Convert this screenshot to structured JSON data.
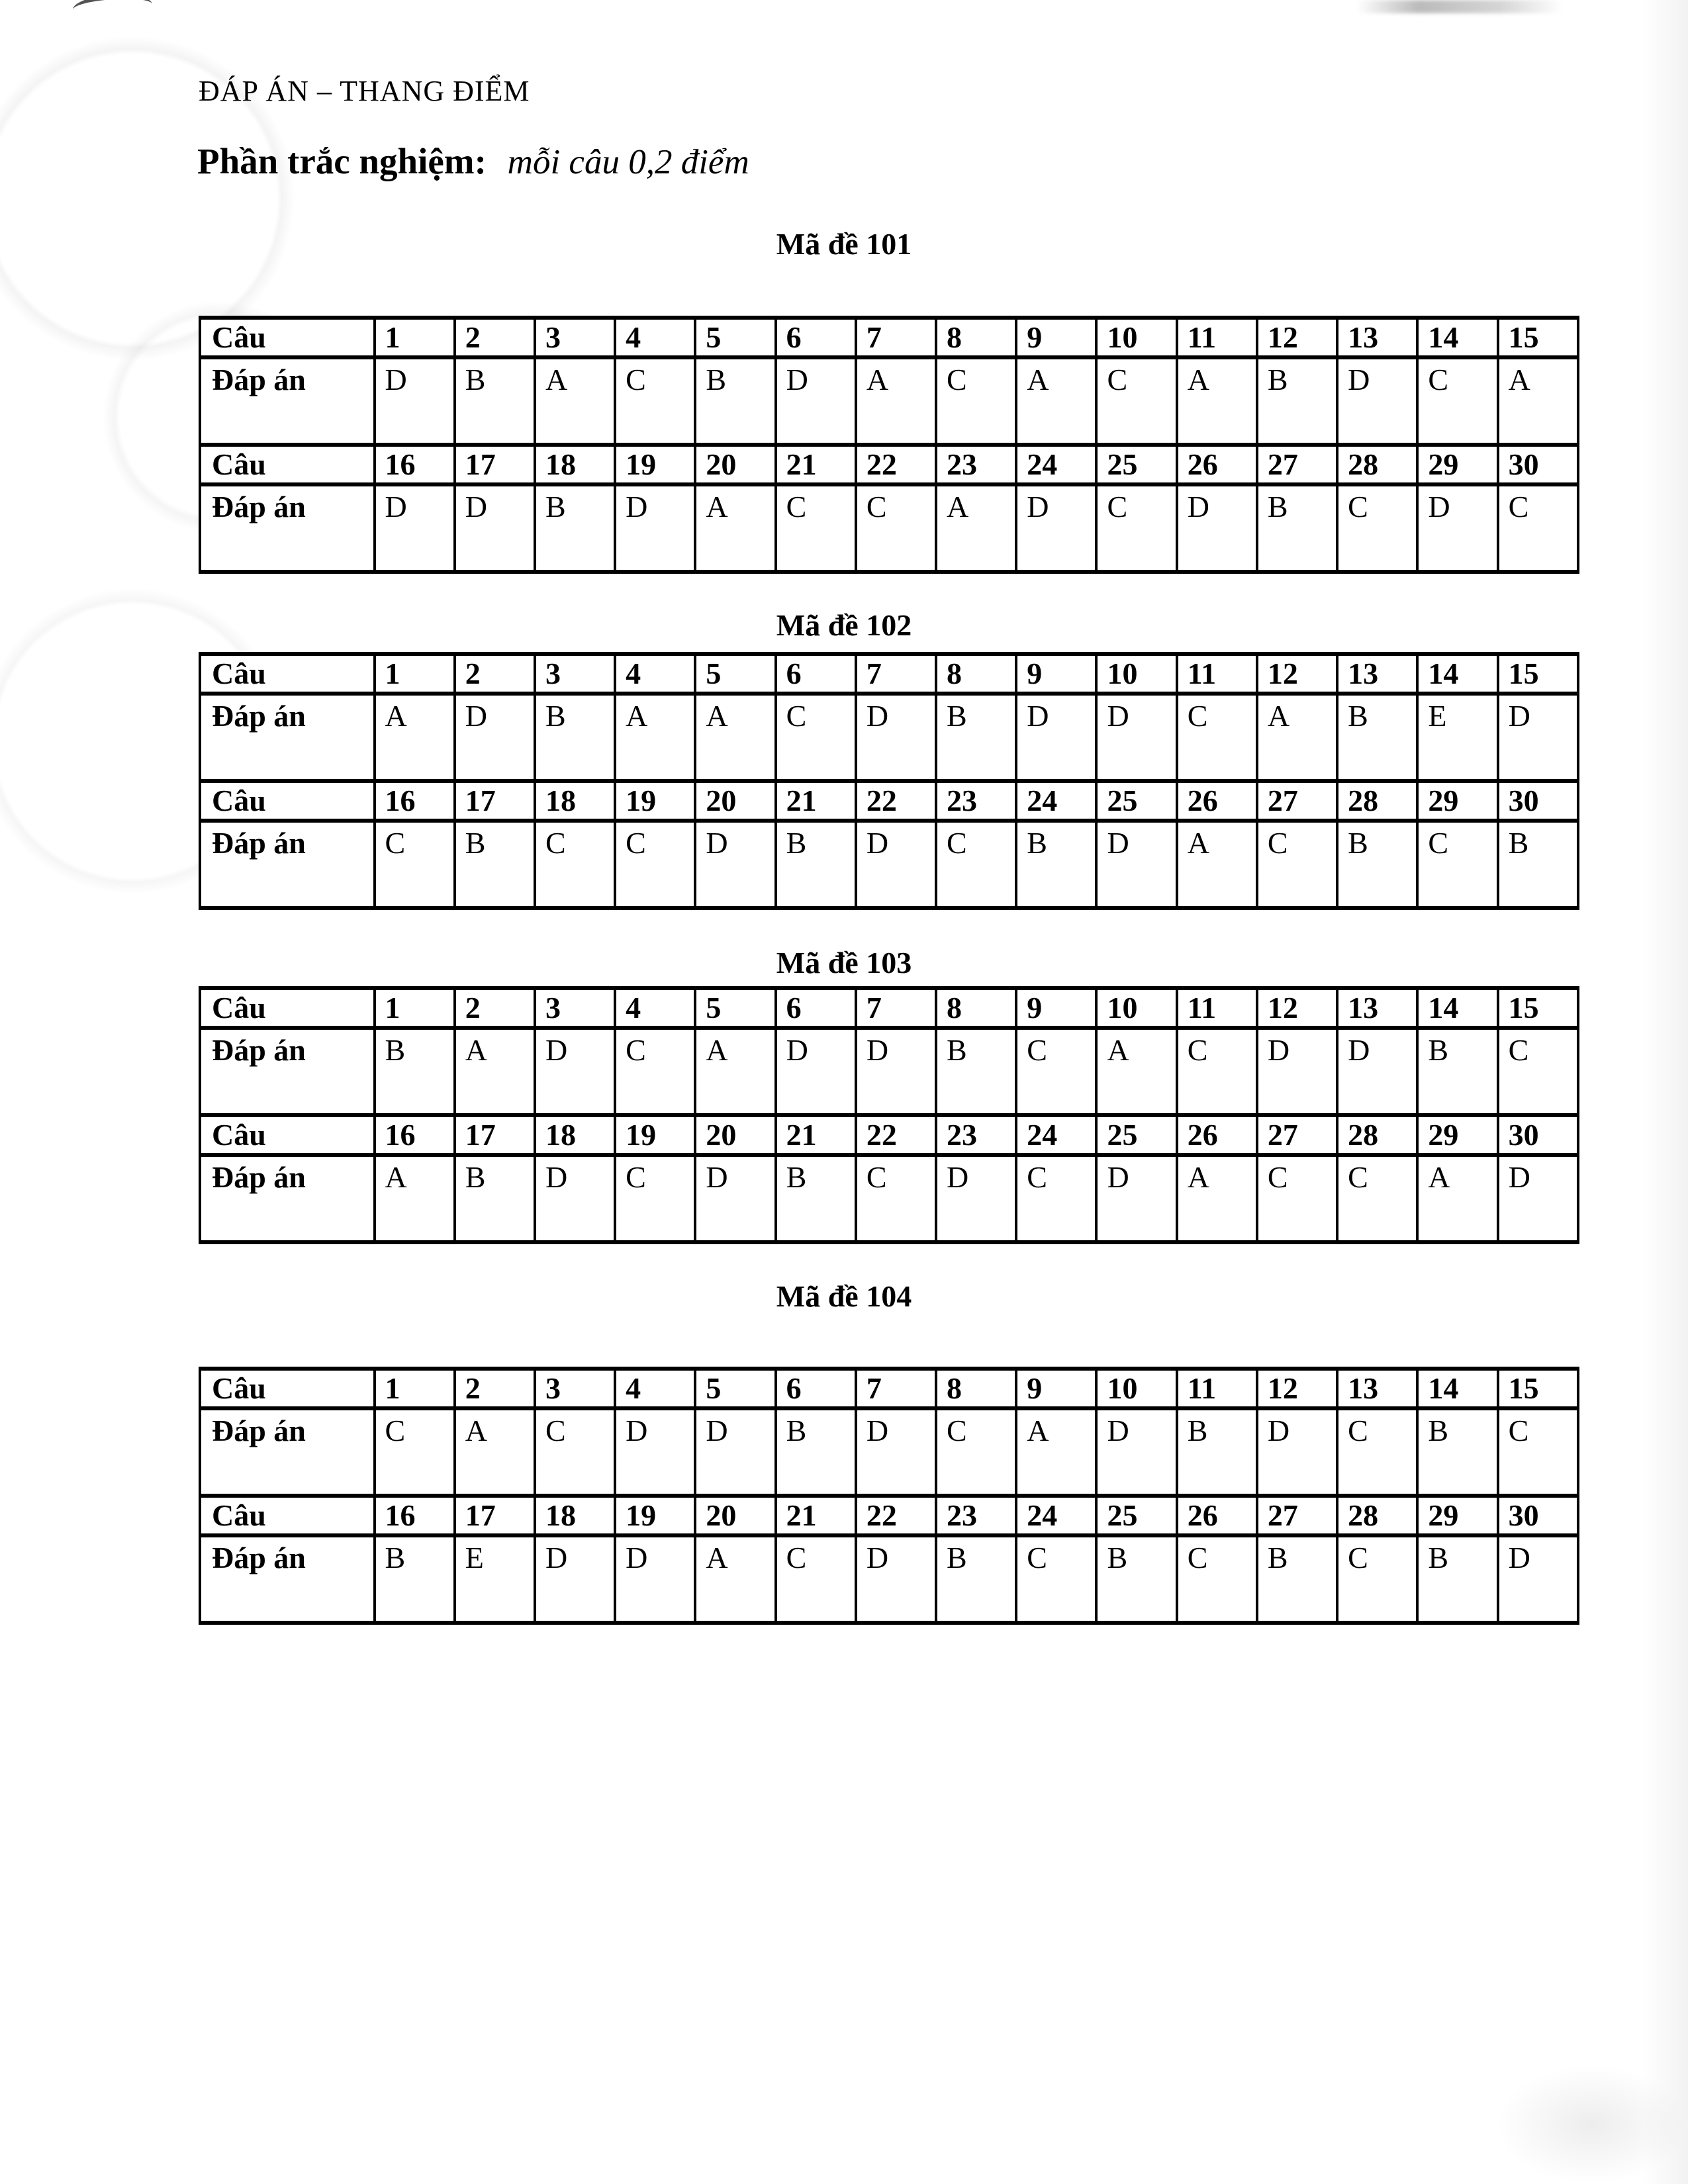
{
  "header": {
    "title": "ĐÁP ÁN – THANG ĐIỂM",
    "section_label": "Phần trắc nghiệm:",
    "section_note": "mỗi câu 0,2 điểm"
  },
  "row_labels": {
    "question": "Câu",
    "answer": "Đáp án"
  },
  "tables": [
    {
      "title": "Mã đề 101",
      "questions_1": [
        "1",
        "2",
        "3",
        "4",
        "5",
        "6",
        "7",
        "8",
        "9",
        "10",
        "11",
        "12",
        "13",
        "14",
        "15"
      ],
      "answers_1": [
        "D",
        "B",
        "A",
        "C",
        "B",
        "D",
        "A",
        "C",
        "A",
        "C",
        "A",
        "B",
        "D",
        "C",
        "A"
      ],
      "questions_2": [
        "16",
        "17",
        "18",
        "19",
        "20",
        "21",
        "22",
        "23",
        "24",
        "25",
        "26",
        "27",
        "28",
        "29",
        "30"
      ],
      "answers_2": [
        "D",
        "D",
        "B",
        "D",
        "A",
        "C",
        "C",
        "A",
        "D",
        "C",
        "D",
        "B",
        "C",
        "D",
        "C"
      ]
    },
    {
      "title": "Mã đề 102",
      "questions_1": [
        "1",
        "2",
        "3",
        "4",
        "5",
        "6",
        "7",
        "8",
        "9",
        "10",
        "11",
        "12",
        "13",
        "14",
        "15"
      ],
      "answers_1": [
        "A",
        "D",
        "B",
        "A",
        "A",
        "C",
        "D",
        "B",
        "D",
        "D",
        "C",
        "A",
        "B",
        "E",
        "D"
      ],
      "questions_2": [
        "16",
        "17",
        "18",
        "19",
        "20",
        "21",
        "22",
        "23",
        "24",
        "25",
        "26",
        "27",
        "28",
        "29",
        "30"
      ],
      "answers_2": [
        "C",
        "B",
        "C",
        "C",
        "D",
        "B",
        "D",
        "C",
        "B",
        "D",
        "A",
        "C",
        "B",
        "C",
        "B"
      ]
    },
    {
      "title": "Mã đề 103",
      "questions_1": [
        "1",
        "2",
        "3",
        "4",
        "5",
        "6",
        "7",
        "8",
        "9",
        "10",
        "11",
        "12",
        "13",
        "14",
        "15"
      ],
      "answers_1": [
        "B",
        "A",
        "D",
        "C",
        "A",
        "D",
        "D",
        "B",
        "C",
        "A",
        "C",
        "D",
        "D",
        "B",
        "C"
      ],
      "questions_2": [
        "16",
        "17",
        "18",
        "19",
        "20",
        "21",
        "22",
        "23",
        "24",
        "25",
        "26",
        "27",
        "28",
        "29",
        "30"
      ],
      "answers_2": [
        "A",
        "B",
        "D",
        "C",
        "D",
        "B",
        "C",
        "D",
        "C",
        "D",
        "A",
        "C",
        "C",
        "A",
        "D"
      ]
    },
    {
      "title": "Mã đề 104",
      "questions_1": [
        "1",
        "2",
        "3",
        "4",
        "5",
        "6",
        "7",
        "8",
        "9",
        "10",
        "11",
        "12",
        "13",
        "14",
        "15"
      ],
      "answers_1": [
        "C",
        "A",
        "C",
        "D",
        "D",
        "B",
        "D",
        "C",
        "A",
        "D",
        "B",
        "D",
        "C",
        "B",
        "C"
      ],
      "questions_2": [
        "16",
        "17",
        "18",
        "19",
        "20",
        "21",
        "22",
        "23",
        "24",
        "25",
        "26",
        "27",
        "28",
        "29",
        "30"
      ],
      "answers_2": [
        "B",
        "E",
        "D",
        "D",
        "A",
        "C",
        "D",
        "B",
        "C",
        "B",
        "C",
        "B",
        "C",
        "B",
        "D"
      ]
    }
  ]
}
